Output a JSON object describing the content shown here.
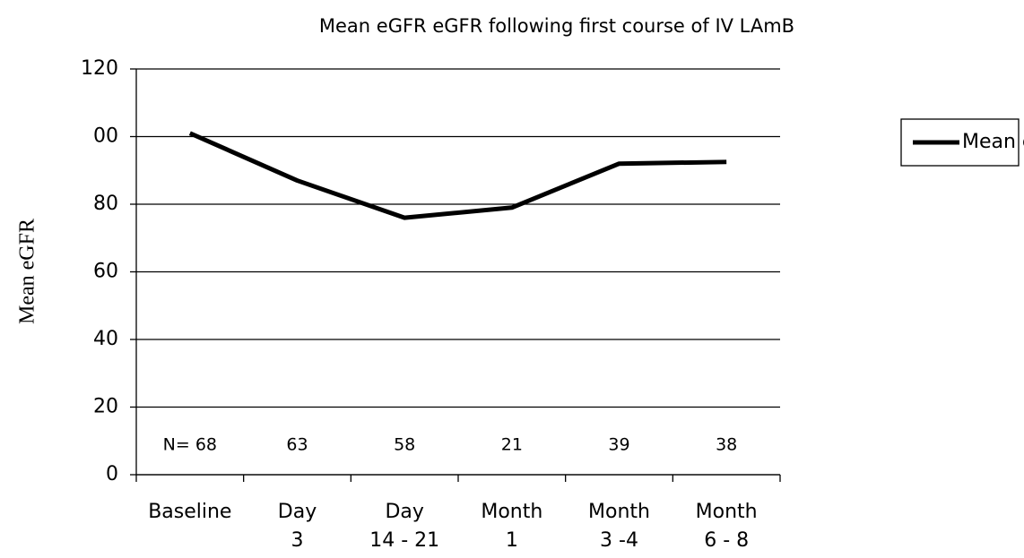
{
  "chart_data": {
    "type": "line",
    "title": "Mean eGFR eGFR following first course of IV LAmB",
    "y_label": "Mean eGFR",
    "categories": [
      [
        "Baseline"
      ],
      [
        "Day",
        "3"
      ],
      [
        "Day",
        "14 - 21"
      ],
      [
        "Month",
        "1"
      ],
      [
        "Month",
        "3 -4"
      ],
      [
        "Month",
        "6 - 8"
      ]
    ],
    "series": [
      {
        "name": "Mean eGFR",
        "color": "#000000",
        "values": [
          101,
          87,
          76,
          79,
          92,
          92.5
        ]
      }
    ],
    "n_labels": [
      "N= 68",
      "63",
      "58",
      "21",
      "39",
      "38"
    ],
    "ylim": [
      0,
      120
    ],
    "yticks": [
      0,
      20,
      40,
      60,
      80,
      {
        "value": 100,
        "label": "00"
      },
      120
    ],
    "grid": true,
    "legend": "right"
  }
}
